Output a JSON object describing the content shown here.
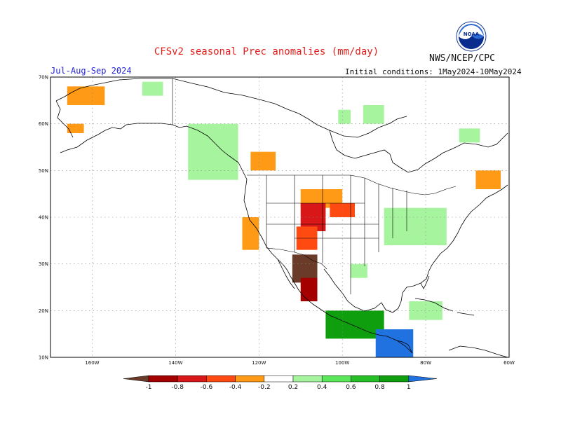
{
  "title": "CFSv2 seasonal Prec anomalies (mm/day)",
  "agency": "NWS/NCEP/CPC",
  "logo": {
    "text": "NOAA",
    "icon": "noaa-logo-icon"
  },
  "season": "Jul-Aug-Sep 2024",
  "initial_conditions": "Initial conditions: 1May2024-10May2024",
  "lat_labels": [
    "70N",
    "60N",
    "50N",
    "40N",
    "30N",
    "20N",
    "10N"
  ],
  "lon_labels": [
    "160W",
    "140W",
    "120W",
    "100W",
    "80W",
    "60W"
  ],
  "colorbar": {
    "labels": [
      "-1",
      "-0.8",
      "-0.6",
      "-0.4",
      "-0.2",
      "0.2",
      "0.4",
      "0.6",
      "0.8",
      "1"
    ],
    "colors": [
      "#6b3b2a",
      "#a50000",
      "#d81818",
      "#ff4a12",
      "#ff9a16",
      "#ffffff",
      "#a6f59e",
      "#5ae85a",
      "#26c026",
      "#0e9e0e",
      "#1f72e0"
    ]
  },
  "chart_data": {
    "type": "heatmap",
    "title": "CFSv2 seasonal Prec anomalies (mm/day)",
    "subtitle": "Jul-Aug-Sep 2024",
    "initial_conditions": "1May2024-10May2024",
    "units": "mm/day",
    "lat_range": [
      10,
      70
    ],
    "lon_range": [
      -170,
      -60
    ],
    "grid": "dotted",
    "contour_levels": [
      -1,
      -0.8,
      -0.6,
      -0.4,
      -0.2,
      0.2,
      0.4,
      0.6,
      0.8,
      1
    ],
    "regions": [
      {
        "lat_min": 64,
        "lat_max": 68,
        "lon_min": -166,
        "lon_max": -157,
        "value": -0.3
      },
      {
        "lat_min": 58,
        "lat_max": 60,
        "lon_min": -166,
        "lon_max": -162,
        "value": -0.3
      },
      {
        "lat_min": 66,
        "lat_max": 69,
        "lon_min": -148,
        "lon_max": -143,
        "value": 0.3
      },
      {
        "lat_min": 48,
        "lat_max": 60,
        "lon_min": -137,
        "lon_max": -125,
        "value": 0.4
      },
      {
        "lat_min": 50,
        "lat_max": 54,
        "lon_min": -122,
        "lon_max": -116,
        "value": -0.3
      },
      {
        "lat_min": 60,
        "lat_max": 63,
        "lon_min": -101,
        "lon_max": -98,
        "value": 0.3
      },
      {
        "lat_min": 42,
        "lat_max": 46,
        "lon_min": -110,
        "lon_max": -100,
        "value": -0.3
      },
      {
        "lat_min": 37,
        "lat_max": 43,
        "lon_min": -110,
        "lon_max": -104,
        "value": -0.6
      },
      {
        "lat_min": 33,
        "lat_max": 38,
        "lon_min": -111,
        "lon_max": -106,
        "value": -0.5
      },
      {
        "lat_min": 40,
        "lat_max": 43,
        "lon_min": -103,
        "lon_max": -97,
        "value": -0.5
      },
      {
        "lat_min": 26,
        "lat_max": 32,
        "lon_min": -112,
        "lon_max": -106,
        "value": -1.0
      },
      {
        "lat_min": 22,
        "lat_max": 27,
        "lon_min": -110,
        "lon_max": -106,
        "value": -0.8
      },
      {
        "lat_min": 33,
        "lat_max": 40,
        "lon_min": -124,
        "lon_max": -120,
        "value": -0.3
      },
      {
        "lat_min": 34,
        "lat_max": 42,
        "lon_min": -90,
        "lon_max": -75,
        "value": 0.4
      },
      {
        "lat_min": 27,
        "lat_max": 30,
        "lon_min": -98,
        "lon_max": -94,
        "value": 0.3
      },
      {
        "lat_min": 14,
        "lat_max": 20,
        "lon_min": -104,
        "lon_max": -90,
        "value": 0.9
      },
      {
        "lat_min": 10,
        "lat_max": 16,
        "lon_min": -92,
        "lon_max": -83,
        "value": 1.1
      },
      {
        "lat_min": 18,
        "lat_max": 22,
        "lon_min": -84,
        "lon_max": -76,
        "value": 0.3
      },
      {
        "lat_min": 46,
        "lat_max": 50,
        "lon_min": -68,
        "lon_max": -62,
        "value": -0.3
      },
      {
        "lat_min": 60,
        "lat_max": 64,
        "lon_min": -95,
        "lon_max": -90,
        "value": 0.3
      },
      {
        "lat_min": 56,
        "lat_max": 59,
        "lon_min": -72,
        "lon_max": -67,
        "value": 0.3
      }
    ]
  }
}
